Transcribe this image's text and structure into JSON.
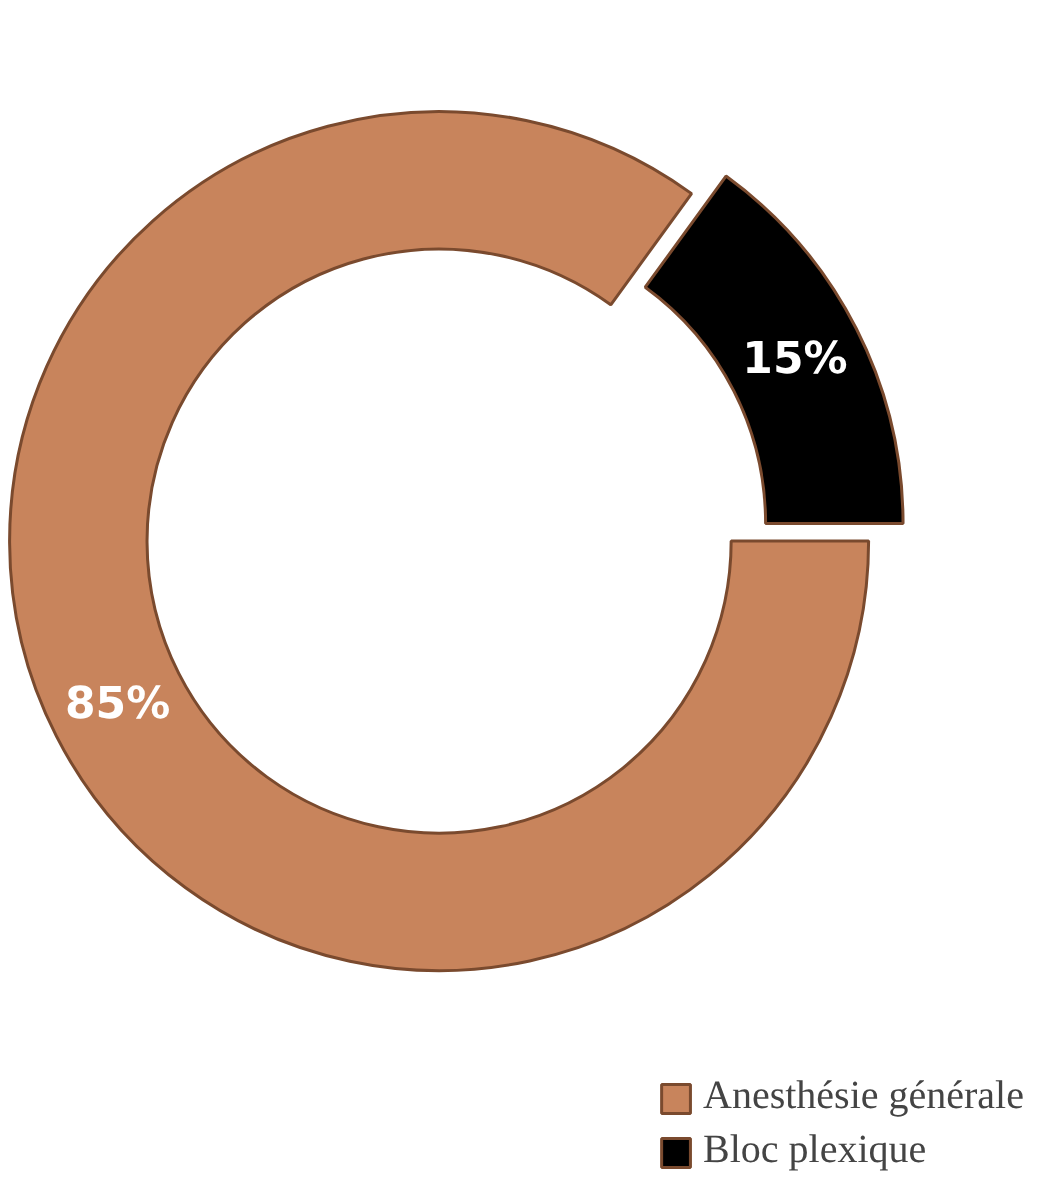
{
  "chart_data": {
    "type": "donut",
    "categories": [
      "Anesthésie générale",
      "Bloc plexique"
    ],
    "values": [
      85,
      15
    ],
    "colors": [
      "#c8845c",
      "#000000"
    ],
    "value_labels": [
      "85%",
      "15%"
    ],
    "legend": "bottom"
  }
}
